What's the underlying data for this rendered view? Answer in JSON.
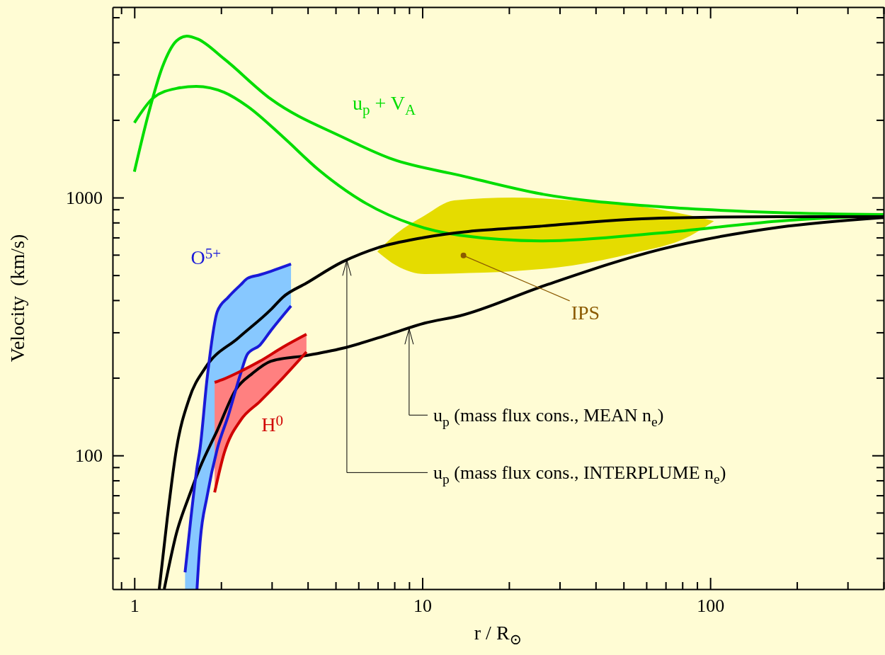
{
  "chart_data": {
    "type": "line",
    "xlabel": "r / R$_{⊙}$",
    "ylabel": "Velocity  (km/s)",
    "log": "xy",
    "xlim": [
      0.84,
      400
    ],
    "ylim": [
      30.3,
      5480
    ],
    "xticks": [
      {
        "value": 0.9,
        "label": null
      },
      {
        "value": 1,
        "label": "1"
      },
      {
        "value": 2,
        "label": null
      },
      {
        "value": 3,
        "label": null
      },
      {
        "value": 4,
        "label": null
      },
      {
        "value": 5,
        "label": null
      },
      {
        "value": 6,
        "label": null
      },
      {
        "value": 7,
        "label": null
      },
      {
        "value": 8,
        "label": null
      },
      {
        "value": 9,
        "label": null
      },
      {
        "value": 10,
        "label": "10"
      },
      {
        "value": 20,
        "label": null
      },
      {
        "value": 30,
        "label": null
      },
      {
        "value": 40,
        "label": null
      },
      {
        "value": 50,
        "label": null
      },
      {
        "value": 60,
        "label": null
      },
      {
        "value": 70,
        "label": null
      },
      {
        "value": 80,
        "label": null
      },
      {
        "value": 90,
        "label": null
      },
      {
        "value": 100,
        "label": "100"
      },
      {
        "value": 200,
        "label": null
      },
      {
        "value": 300,
        "label": null
      },
      {
        "value": 400,
        "label": null
      }
    ],
    "yticks": [
      {
        "value": 40,
        "label": null
      },
      {
        "value": 50,
        "label": null
      },
      {
        "value": 60,
        "label": null
      },
      {
        "value": 70,
        "label": null
      },
      {
        "value": 80,
        "label": null
      },
      {
        "value": 90,
        "label": null
      },
      {
        "value": 100,
        "label": "100"
      },
      {
        "value": 200,
        "label": null
      },
      {
        "value": 300,
        "label": null
      },
      {
        "value": 400,
        "label": null
      },
      {
        "value": 500,
        "label": null
      },
      {
        "value": 600,
        "label": null
      },
      {
        "value": 700,
        "label": null
      },
      {
        "value": 800,
        "label": null
      },
      {
        "value": 900,
        "label": null
      },
      {
        "value": 1000,
        "label": "1000"
      },
      {
        "value": 2000,
        "label": null
      },
      {
        "value": 3000,
        "label": null
      },
      {
        "value": 4000,
        "label": null
      },
      {
        "value": 5000,
        "label": null
      }
    ],
    "series": [
      {
        "name": "u$_{p}$ + V$_{A}$",
        "color": "#00dd00",
        "x": [
          1,
          1.12,
          1.25,
          1.4,
          1.52,
          1.66,
          2.05,
          2.98,
          5.26,
          7.86,
          13.5,
          26.3,
          67.3,
          173,
          400
        ],
        "values": [
          1260,
          2120,
          3200,
          4050,
          4230,
          4120,
          3450,
          2410,
          1720,
          1410,
          1220,
          1030,
          921,
          875,
          859
        ]
      },
      {
        "color": "#00dd00",
        "x": [
          1,
          1.165,
          1.4,
          1.64,
          2.05,
          2.47,
          3.28,
          4.37,
          6.37,
          9.27,
          13.5,
          26.3,
          67.3,
          173,
          400
        ],
        "values": [
          1950,
          2440,
          2650,
          2700,
          2560,
          2260,
          1720,
          1280,
          950,
          787,
          714,
          679,
          729,
          811,
          853
        ]
      },
      {
        "color": "#000000",
        "x": [
          1.22,
          1.3,
          1.4,
          1.55,
          1.76,
          2.3,
          2.98,
          3.28,
          3.96,
          5.26,
          6.98,
          10.2,
          26.3,
          67.3,
          173,
          400
        ],
        "values": [
          30.3,
          56.6,
          106,
          166,
          218,
          286,
          368,
          411,
          466,
          562,
          638,
          701,
          776,
          832,
          843,
          843
        ]
      },
      {
        "color": "#000000",
        "x": [
          1.27,
          1.4,
          1.55,
          1.69,
          1.94,
          2.25,
          2.57,
          2.98,
          3.96,
          5.26,
          7.69,
          10.2,
          13.5,
          26.3,
          67.3,
          173,
          400
        ],
        "values": [
          30.3,
          49.9,
          69.7,
          89.8,
          125,
          180,
          208,
          232,
          244,
          260,
          295,
          326,
          348,
          454,
          630,
          767,
          837
        ]
      },
      {
        "color": "#e5dc00",
        "x": [
          6.98,
          8.13,
          10.2,
          12.9,
          20.7,
          33.1,
          53.3,
          85.3,
          103
        ],
        "values": [
          null,
          null,
          null,
          null,
          null,
          null,
          null,
          null,
          null
        ],
        "lower": [
          618,
          545,
          505,
          508,
          518,
          545,
          607,
          711,
          811
        ],
        "upper": [
          618,
          724,
          853,
          975,
          1000,
          975,
          933,
          853,
          811
        ]
      },
      {
        "color": "#87c8ff",
        "x": [
          1.5,
          1.57,
          1.65,
          1.69,
          1.79,
          1.94,
          2.12,
          2.34,
          2.47,
          2.73,
          2.98,
          3.5
        ],
        "values": [
          null,
          null,
          null,
          null,
          null,
          null,
          null,
          null,
          null,
          null,
          null,
          null
        ],
        "lower": [
          30.3,
          30.3,
          30.3,
          45.6,
          69.7,
          106,
          143,
          208,
          247,
          268,
          305,
          380
        ],
        "upper": [
          35.2,
          56.6,
          89.8,
          106,
          200,
          361,
          411,
          459,
          486,
          502,
          518,
          552
        ]
      },
      {
        "name": "O$^{5+}$",
        "color": "#1a1ad8",
        "x": [
          1.5,
          1.57,
          1.65,
          1.69,
          1.79,
          1.94,
          2.12,
          2.34,
          2.47,
          2.73,
          2.98,
          3.5
        ],
        "values": [
          35.2,
          56.6,
          89.8,
          106,
          200,
          361,
          411,
          459,
          486,
          502,
          518,
          552
        ]
      },
      {
        "color": "#1a1ad8",
        "x": [
          1.65,
          1.69,
          1.79,
          1.94,
          2.12,
          2.34,
          2.47,
          2.73,
          2.98,
          3.5
        ],
        "values": [
          30.3,
          45.6,
          69.7,
          106,
          143,
          208,
          247,
          268,
          305,
          380
        ]
      },
      {
        "color": "#ff8080",
        "x": [
          1.9,
          2.05,
          2.34,
          2.73,
          3.28,
          3.96
        ],
        "values": [
          null,
          null,
          null,
          null,
          null,
          null
        ],
        "lower": [
          71.9,
          102,
          137,
          162,
          200,
          252
        ],
        "upper": [
          192,
          198,
          212,
          232,
          263,
          295
        ]
      },
      {
        "color": "#d00000",
        "x": [
          1.9,
          2.05,
          2.34,
          2.73,
          3.28,
          3.96
        ],
        "values": [
          192,
          198,
          212,
          232,
          263,
          295
        ]
      },
      {
        "name": "H$^{0}$",
        "color": "#d00000",
        "x": [
          1.9,
          2.05,
          2.34,
          2.73,
          3.28,
          3.96
        ],
        "values": [
          71.9,
          102,
          137,
          162,
          200,
          252
        ]
      }
    ],
    "annotations": [
      {
        "text": "IPS",
        "x": 13.9,
        "y": 596
      },
      {
        "text": "u$_{p}$ (mass flux cons., MEAN n$_{e}$)",
        "x": 9.0,
        "y": 310
      },
      {
        "text": "u$_{p}$ (mass flux cons., INTERPLUME n$_{e}$)",
        "x": 5.47,
        "y": 572
      }
    ]
  }
}
